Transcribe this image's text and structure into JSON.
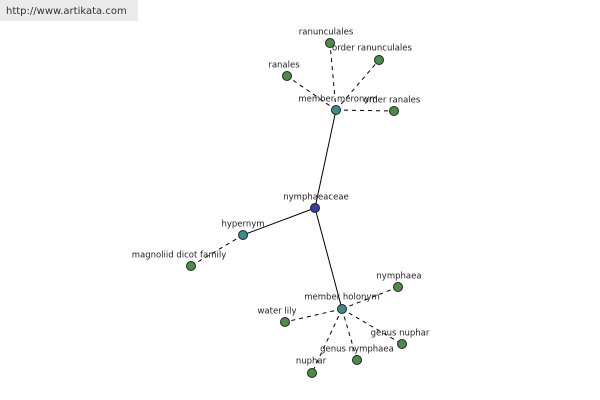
{
  "header": {
    "url": "http://www.artikata.com"
  },
  "nodes": [
    {
      "label": "nymphaeaceae"
    },
    {
      "label": "member meronym"
    },
    {
      "label": "hypernym"
    },
    {
      "label": "member holonym"
    },
    {
      "label": "ranunculales"
    },
    {
      "label": "order ranunculales"
    },
    {
      "label": "ranales"
    },
    {
      "label": "order ranales"
    },
    {
      "label": "magnoliid dicot family"
    },
    {
      "label": "nymphaea"
    },
    {
      "label": "water lily"
    },
    {
      "label": "genus nuphar"
    },
    {
      "label": "genus nymphaea"
    },
    {
      "label": "nuphar"
    }
  ]
}
